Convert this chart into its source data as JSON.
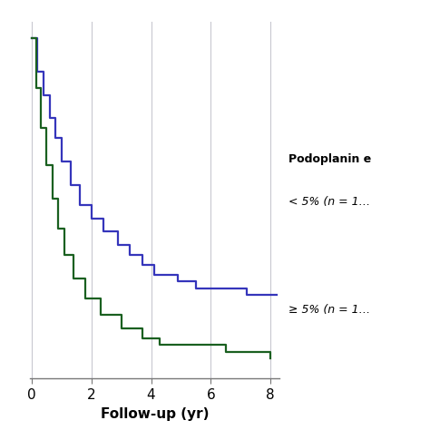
{
  "title": "",
  "xlabel": "Follow-up (yr)",
  "ylabel": "",
  "xlim": [
    -0.05,
    8.3
  ],
  "ylim": [
    -0.02,
    1.05
  ],
  "xticks": [
    0,
    2,
    4,
    6,
    8
  ],
  "yticks": [],
  "background_color": "#ffffff",
  "grid_color": "#c8c8d0",
  "blue_color": "#3535bb",
  "green_color": "#1a6020",
  "legend_title": "Podoplanin e",
  "blue_label": "< 5% (n = 1…",
  "green_label": "≥ 5% (n = 1…",
  "blue_times": [
    0,
    0.2,
    0.4,
    0.6,
    0.8,
    1.0,
    1.3,
    1.6,
    2.0,
    2.4,
    2.9,
    3.3,
    3.7,
    4.1,
    4.9,
    5.5,
    7.2,
    8.2
  ],
  "blue_surv": [
    1.0,
    0.9,
    0.83,
    0.76,
    0.7,
    0.63,
    0.56,
    0.5,
    0.46,
    0.42,
    0.38,
    0.35,
    0.32,
    0.29,
    0.27,
    0.25,
    0.23,
    0.23
  ],
  "green_times": [
    0,
    0.15,
    0.3,
    0.5,
    0.7,
    0.9,
    1.1,
    1.4,
    1.8,
    2.3,
    3.0,
    3.7,
    4.3,
    6.5,
    8.0
  ],
  "green_surv": [
    1.0,
    0.85,
    0.73,
    0.62,
    0.52,
    0.43,
    0.35,
    0.28,
    0.22,
    0.17,
    0.13,
    0.1,
    0.08,
    0.06,
    0.04
  ]
}
